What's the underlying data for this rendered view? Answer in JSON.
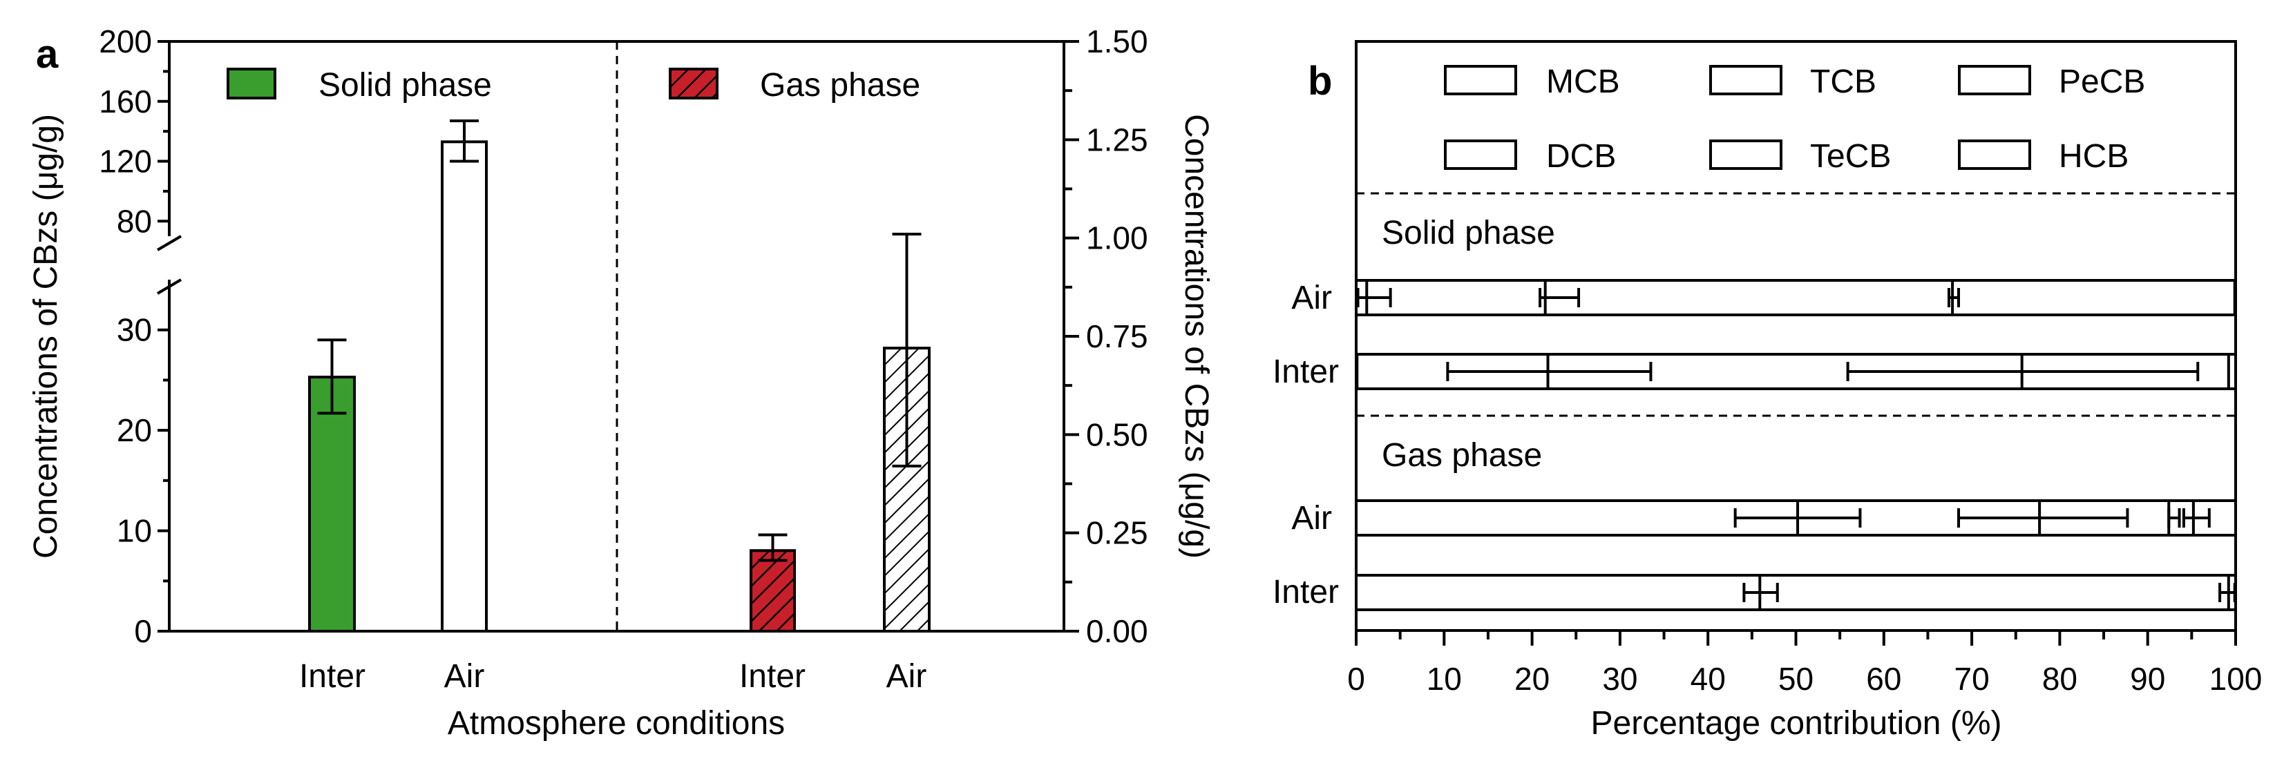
{
  "panel_labels": {
    "a": "a",
    "b": "b"
  },
  "chart_data": [
    {
      "type": "bar",
      "panel": "a",
      "xlabel": "Atmosphere conditions",
      "ylabel_left": "Concentrations of CBzs (μg/g)",
      "ylabel_right": "Concentrations of CBzs (μg/g)",
      "y_left_lower": {
        "range": [
          0,
          35
        ],
        "ticks": [
          "0",
          "10",
          "20",
          "30"
        ]
      },
      "y_left_upper": {
        "range": [
          70,
          200
        ],
        "ticks": [
          "80",
          "120",
          "160",
          "200"
        ]
      },
      "y_right": {
        "range": [
          0,
          1.5
        ],
        "ticks": [
          "0.00",
          "0.25",
          "0.50",
          "0.75",
          "1.00",
          "1.25",
          "1.50"
        ]
      },
      "legend": [
        "Solid phase",
        "Gas phase"
      ],
      "colors": {
        "solid_inter": "#3a9e2e",
        "gas_inter": "#c8202a",
        "hatch": "#000000"
      },
      "groups": [
        {
          "name": "Solid phase",
          "axis": "left",
          "bars": [
            {
              "category": "Inter",
              "value": 25.3,
              "err_low": 21.7,
              "err_high": 29.0,
              "fill": "solid_green"
            },
            {
              "category": "Air",
              "value": 133,
              "err_low": 120,
              "err_high": 147,
              "fill": "white"
            }
          ]
        },
        {
          "name": "Gas phase",
          "axis": "right",
          "bars": [
            {
              "category": "Inter",
              "value": 0.205,
              "err_low": 0.18,
              "err_high": 0.245,
              "fill": "red_hatch"
            },
            {
              "category": "Air",
              "value": 0.72,
              "err_low": 0.42,
              "err_high": 1.01,
              "fill": "white_hatch"
            }
          ]
        }
      ]
    },
    {
      "type": "bar",
      "orientation": "horizontal-stacked",
      "panel": "b",
      "xlabel": "Percentage contribution (%)",
      "xlim": [
        0,
        100
      ],
      "xticks": [
        "0",
        "10",
        "20",
        "30",
        "40",
        "50",
        "60",
        "70",
        "80",
        "90",
        "100"
      ],
      "legend": [
        "MCB",
        "TCB",
        "PeCB",
        "DCB",
        "TeCB",
        "HCB"
      ],
      "sections": [
        {
          "title": "Solid phase",
          "rows": [
            {
              "label": "Air",
              "bounds": [
                1.2,
                21.5,
                67.8,
                99.9
              ],
              "errors": [
                [
                  0.2,
                  3.9
                ],
                [
                  20.9,
                  25.3
                ],
                [
                  67.4,
                  68.5
                ]
              ]
            },
            {
              "label": "Inter",
              "bounds": [
                0.1,
                21.8,
                75.7,
                99.2
              ],
              "errors": [
                [
                  10.4,
                  33.5
                ],
                [
                  55.9,
                  95.7
                ]
              ]
            }
          ]
        },
        {
          "title": "Gas phase",
          "rows": [
            {
              "label": "Air",
              "bounds": [
                50.2,
                77.7,
                92.4,
                95.2
              ],
              "errors": [
                [
                  43.1,
                  57.3
                ],
                [
                  68.5,
                  87.7
                ],
                [
                  92.4,
                  93.6
                ],
                [
                  94.1,
                  97.0
                ]
              ]
            },
            {
              "label": "Inter",
              "bounds": [
                45.9,
                99.2
              ],
              "errors": [
                [
                  44.1,
                  47.9
                ],
                [
                  98.2,
                  99.9
                ]
              ]
            }
          ]
        }
      ]
    }
  ]
}
